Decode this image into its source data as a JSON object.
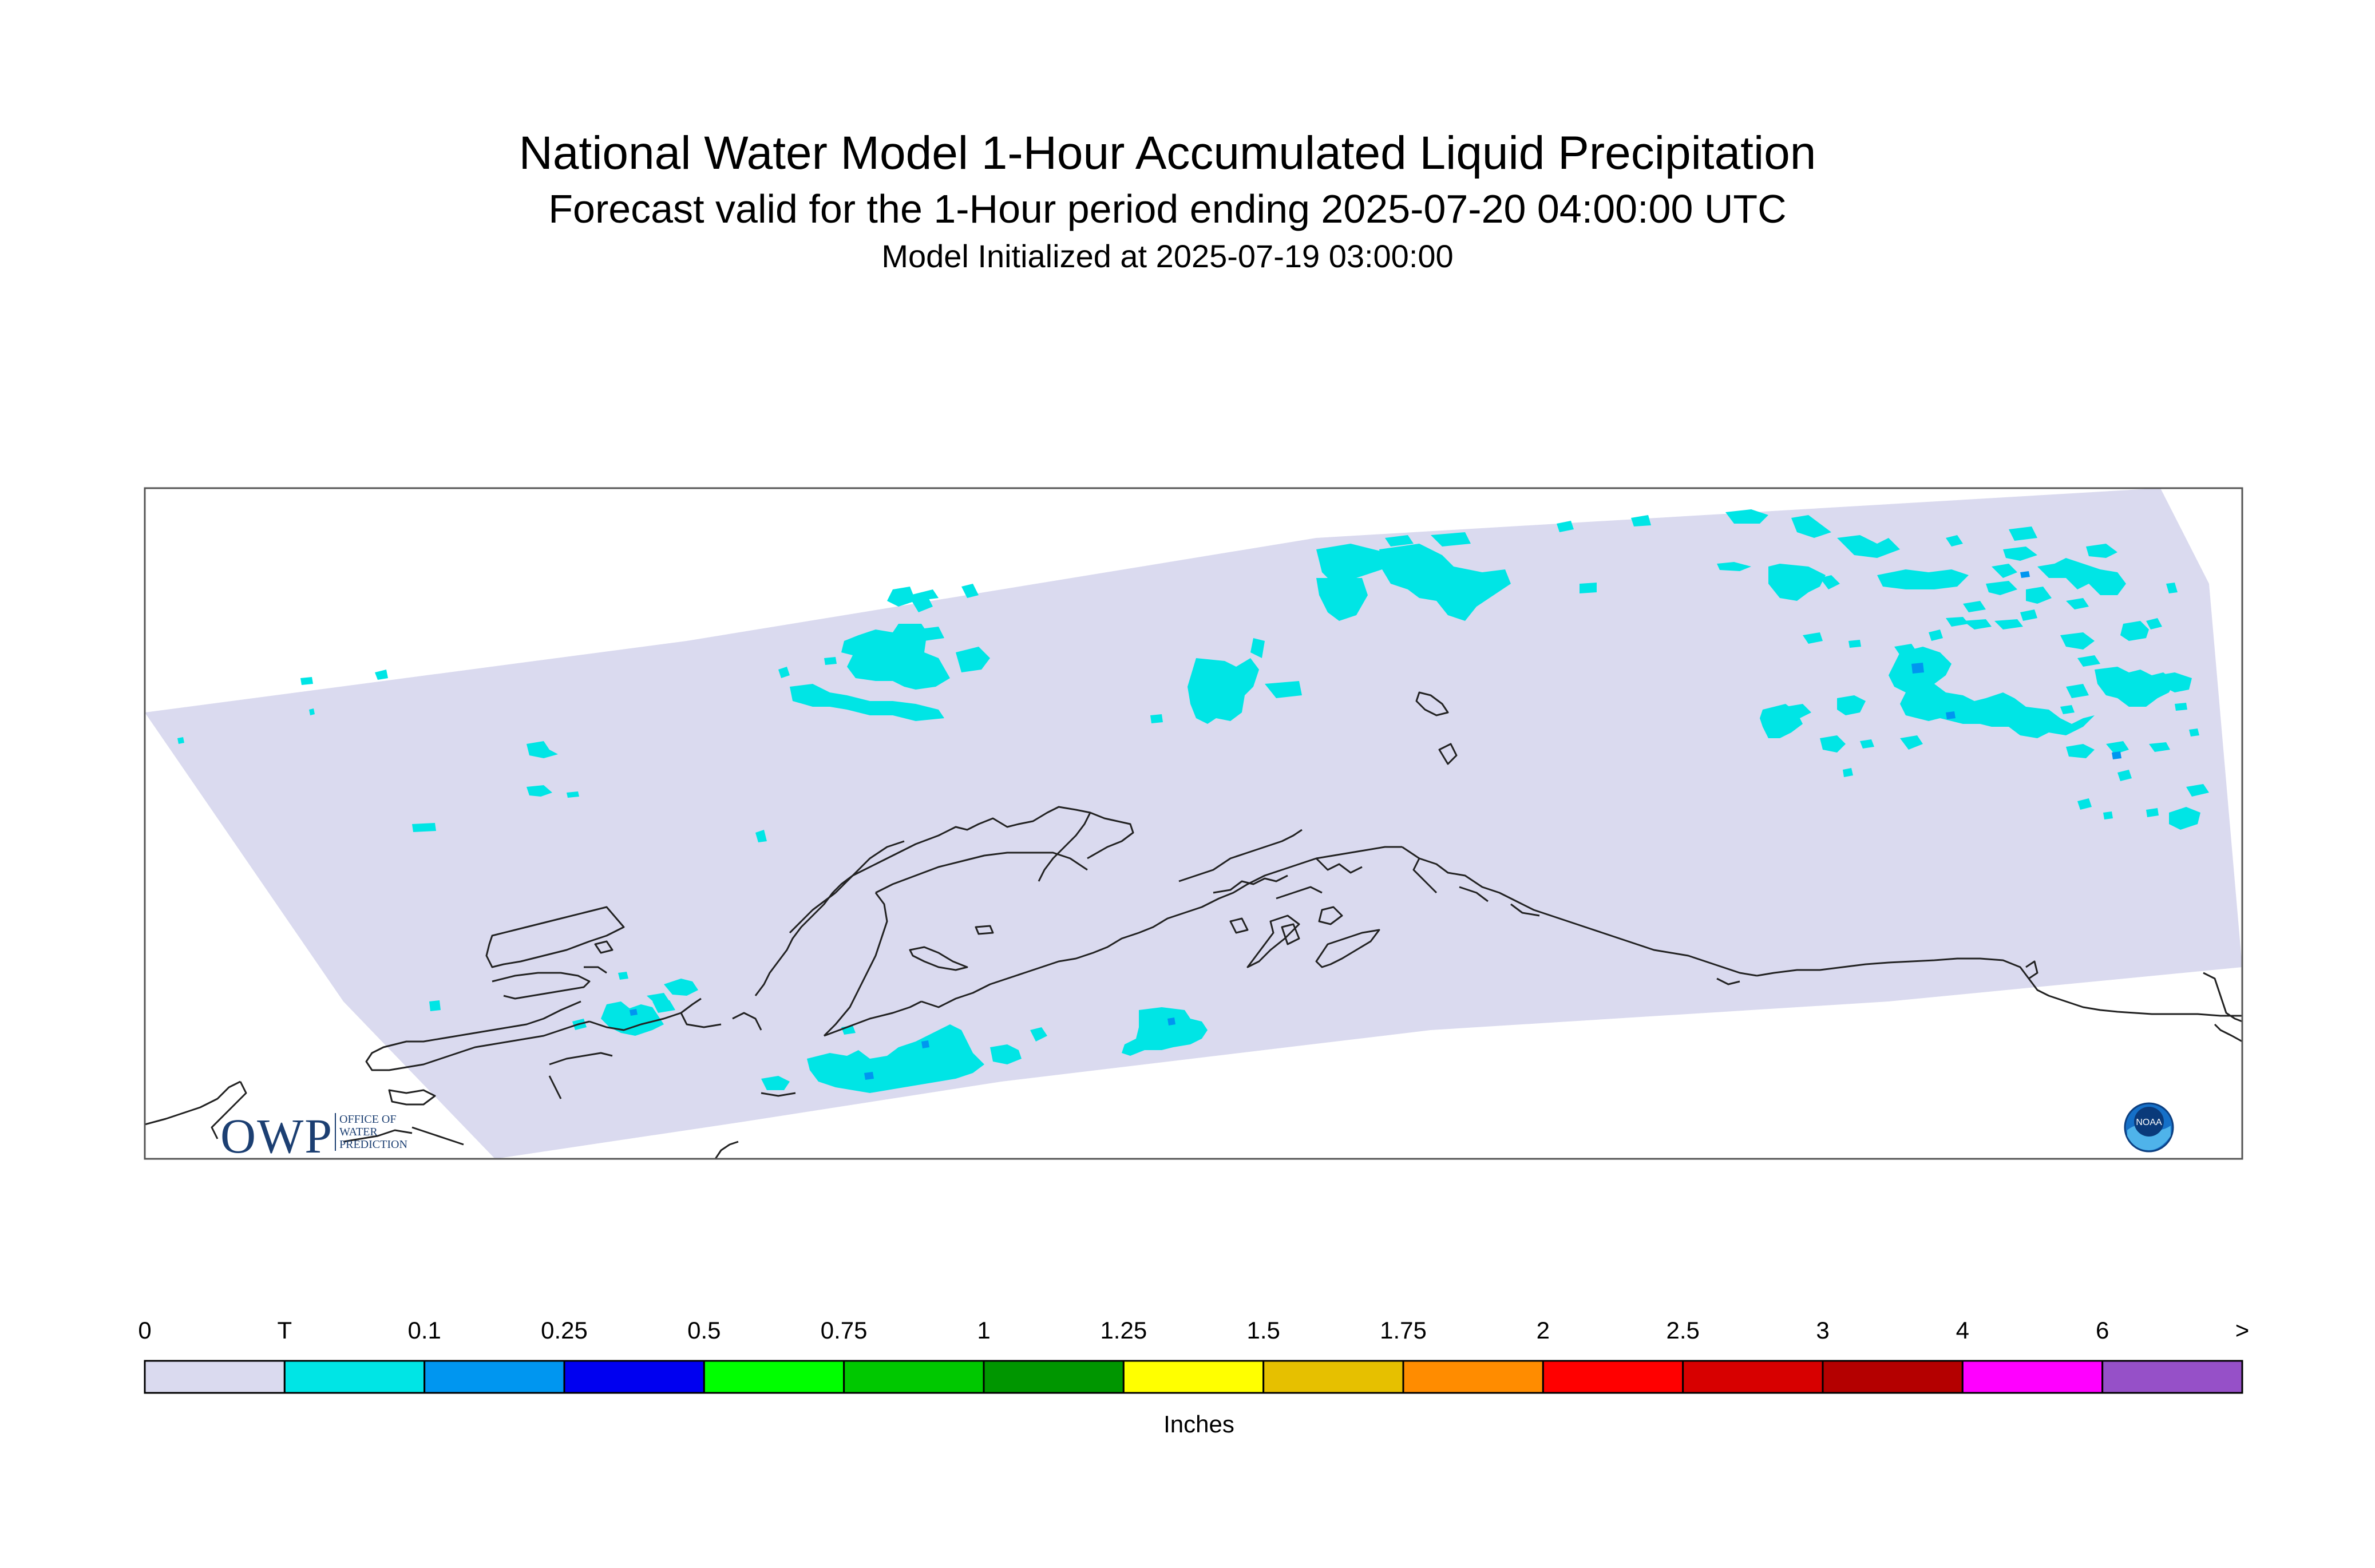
{
  "header": {
    "title": "National Water Model 1-Hour Accumulated Liquid Precipitation",
    "subtitle": "Forecast valid for the 1-Hour period ending 2025-07-20 04:00:00 UTC",
    "init": "Model Initialized at 2025-07-19 03:00:00"
  },
  "legend": {
    "units": "Inches",
    "labels": [
      "0",
      "T",
      "0.1",
      "0.25",
      "0.5",
      "0.75",
      "1",
      "1.25",
      "1.5",
      "1.75",
      "2",
      "2.5",
      "3",
      "4",
      "6",
      ">"
    ],
    "colors": [
      "#dadaef",
      "#00e5e5",
      "#0096f0",
      "#0000f0",
      "#00ff00",
      "#00c800",
      "#009600",
      "#ffff00",
      "#e6c000",
      "#ff8c00",
      "#ff0000",
      "#d70000",
      "#b40000",
      "#ff00ff",
      "#9650c8"
    ]
  },
  "map": {
    "domain_color": "#dadaef",
    "trace_color": "#00e5e5",
    "light_color": "#0096f0",
    "coast_color": "#222222"
  },
  "logos": {
    "owp_big": "OWP",
    "owp_small_1": "OFFICE OF",
    "owp_small_2": "WATER",
    "owp_small_3": "PREDICTION",
    "noaa": "NOAA"
  }
}
